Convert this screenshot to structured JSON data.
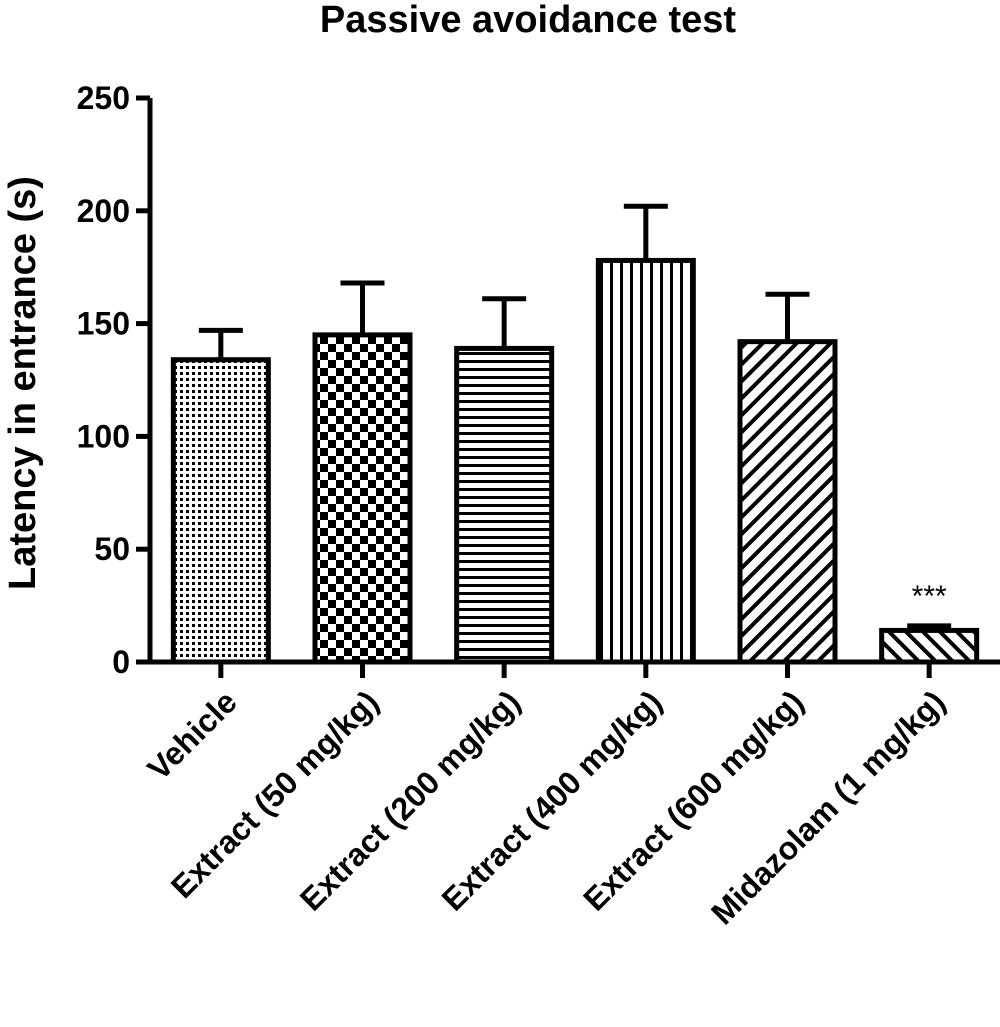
{
  "chart_data": {
    "type": "bar",
    "title": "Passive avoidance test",
    "xlabel": "",
    "ylabel": "Latency in entrance (s)",
    "ylim": [
      0,
      250
    ],
    "yticks": [
      "0",
      "50",
      "100",
      "150",
      "200",
      "250"
    ],
    "grid": false,
    "categories": [
      "Vehicle",
      "Extract (50 mg/kg)",
      "Extract (200 mg/kg)",
      "Extract (400 mg/kg)",
      "Extract (600 mg/kg)",
      "Midazolam (1 mg/kg)"
    ],
    "values": [
      134,
      145,
      139,
      178,
      142,
      14
    ],
    "error_upper": [
      147,
      168,
      161,
      202,
      163,
      16
    ],
    "fill_patterns": [
      "dots",
      "checker",
      "horizontal-lines",
      "vertical-lines",
      "diagonal-lines",
      "diagonal-lines-reverse"
    ],
    "annotations": [
      {
        "category": "Midazolam (1 mg/kg)",
        "text": "***"
      }
    ],
    "colors": {
      "bar_stroke": "#000000",
      "bar_fill": "#ffffff",
      "pattern": "#000000"
    }
  }
}
